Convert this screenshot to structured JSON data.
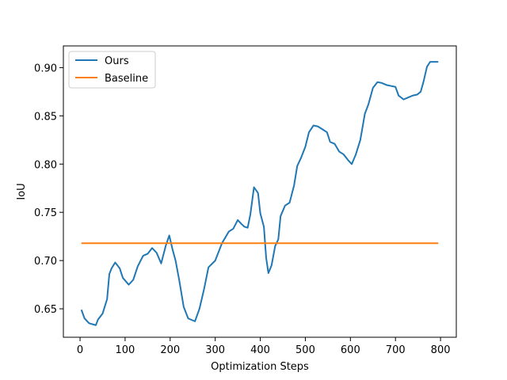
{
  "chart_data": {
    "type": "line",
    "title": "",
    "xlabel": "Optimization Steps",
    "ylabel": "IoU",
    "xlim": [
      -37,
      835
    ],
    "ylim": [
      0.6205,
      0.9225
    ],
    "xticks": [
      0,
      100,
      200,
      300,
      400,
      500,
      600,
      700,
      800
    ],
    "yticks": [
      0.65,
      0.7,
      0.75,
      0.8,
      0.85,
      0.9
    ],
    "ytick_labels": [
      "0.65",
      "0.70",
      "0.75",
      "0.80",
      "0.85",
      "0.90"
    ],
    "grid": false,
    "legend_position": "top-left",
    "series": [
      {
        "name": "Ours",
        "color": "#1f77b4",
        "x": [
          3,
          10,
          20,
          35,
          40,
          50,
          60,
          65,
          70,
          78,
          88,
          95,
          108,
          118,
          128,
          140,
          150,
          160,
          170,
          180,
          190,
          198,
          205,
          212,
          220,
          230,
          240,
          255,
          265,
          275,
          285,
          300,
          315,
          330,
          340,
          350,
          358,
          365,
          372,
          378,
          386,
          395,
          400,
          408,
          413,
          418,
          425,
          433,
          440,
          445,
          455,
          465,
          475,
          482,
          490,
          500,
          508,
          518,
          528,
          538,
          548,
          555,
          565,
          575,
          585,
          595,
          603,
          612,
          622,
          632,
          640,
          650,
          660,
          670,
          680,
          690,
          700,
          707,
          718,
          728,
          738,
          748,
          756,
          762,
          770,
          777,
          785,
          795
        ],
        "y": [
          0.649,
          0.64,
          0.635,
          0.633,
          0.639,
          0.645,
          0.66,
          0.686,
          0.692,
          0.698,
          0.692,
          0.682,
          0.675,
          0.68,
          0.694,
          0.705,
          0.707,
          0.713,
          0.708,
          0.697,
          0.715,
          0.726,
          0.712,
          0.7,
          0.68,
          0.652,
          0.64,
          0.637,
          0.65,
          0.67,
          0.693,
          0.7,
          0.718,
          0.73,
          0.733,
          0.742,
          0.738,
          0.735,
          0.734,
          0.748,
          0.776,
          0.77,
          0.749,
          0.735,
          0.703,
          0.687,
          0.695,
          0.715,
          0.722,
          0.746,
          0.757,
          0.76,
          0.778,
          0.798,
          0.806,
          0.818,
          0.833,
          0.84,
          0.839,
          0.836,
          0.833,
          0.823,
          0.821,
          0.813,
          0.81,
          0.804,
          0.8,
          0.81,
          0.825,
          0.852,
          0.862,
          0.879,
          0.885,
          0.884,
          0.882,
          0.881,
          0.88,
          0.871,
          0.867,
          0.869,
          0.871,
          0.872,
          0.875,
          0.885,
          0.901,
          0.906,
          0.906,
          0.906
        ]
      },
      {
        "name": "Baseline",
        "color": "#ff7f0e",
        "x": [
          3,
          795
        ],
        "y": [
          0.718,
          0.718
        ]
      }
    ]
  }
}
